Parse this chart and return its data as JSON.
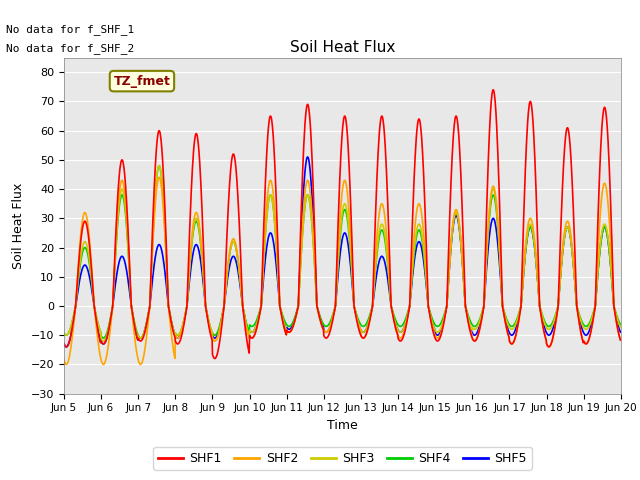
{
  "title": "Soil Heat Flux",
  "xlabel": "Time",
  "ylabel": "Soil Heat Flux",
  "ylim": [
    -30,
    85
  ],
  "yticks": [
    -30,
    -20,
    -10,
    0,
    10,
    20,
    30,
    40,
    50,
    60,
    70,
    80
  ],
  "series_names": [
    "SHF1",
    "SHF2",
    "SHF3",
    "SHF4",
    "SHF5"
  ],
  "legend_colors": [
    "#ff0000",
    "#ffa500",
    "#cccc00",
    "#00cc00",
    "#0000ff"
  ],
  "no_data_text_1": "No data for f_SHF_1",
  "no_data_text_2": "No data for f_SHF_2",
  "tz_label": "TZ_fmet",
  "background_color": "#e8e8e8",
  "x_tick_labels": [
    "Jun 5",
    "Jun 6",
    "Jun 7",
    "Jun 8",
    "Jun 9",
    "Jun 10",
    "Jun 11",
    "Jun 12",
    "Jun 13",
    "Jun 14",
    "Jun 15",
    "Jun 16",
    "Jun 17",
    "Jun 18",
    "Jun 19",
    "Jun 20"
  ],
  "n_days": 15,
  "peak_hour": 13.5,
  "trough_hour": 3.0,
  "day_peak_shf1": [
    29,
    50,
    60,
    59,
    52,
    65,
    69,
    65,
    65,
    64,
    65,
    74,
    70,
    61,
    68
  ],
  "day_peak_shf2": [
    32,
    43,
    44,
    32,
    23,
    43,
    43,
    43,
    35,
    35,
    33,
    41,
    30,
    29,
    42
  ],
  "day_peak_shf3": [
    22,
    40,
    48,
    30,
    22,
    38,
    38,
    35,
    28,
    28,
    32,
    40,
    28,
    27,
    28
  ],
  "day_peak_shf4": [
    20,
    38,
    48,
    29,
    22,
    38,
    38,
    33,
    26,
    26,
    32,
    38,
    27,
    27,
    27
  ],
  "day_peak_shf5": [
    14,
    17,
    21,
    21,
    17,
    25,
    51,
    25,
    17,
    22,
    31,
    30,
    27,
    27,
    27
  ],
  "day_trough_shf1": [
    14,
    13,
    12,
    13,
    18,
    11,
    9,
    11,
    11,
    12,
    12,
    12,
    13,
    14,
    13
  ],
  "day_trough_shf2": [
    20,
    20,
    20,
    11,
    12,
    11,
    9,
    9,
    11,
    11,
    11,
    12,
    13,
    14,
    13
  ],
  "day_trough_shf3": [
    10,
    12,
    11,
    10,
    12,
    9,
    9,
    9,
    9,
    9,
    9,
    8,
    8,
    8,
    8
  ],
  "day_trough_shf4": [
    10,
    11,
    11,
    10,
    10,
    7,
    7,
    7,
    7,
    7,
    7,
    7,
    7,
    7,
    7
  ],
  "day_trough_shf5": [
    14,
    13,
    11,
    11,
    11,
    9,
    8,
    9,
    9,
    9,
    10,
    10,
    10,
    10,
    10
  ]
}
